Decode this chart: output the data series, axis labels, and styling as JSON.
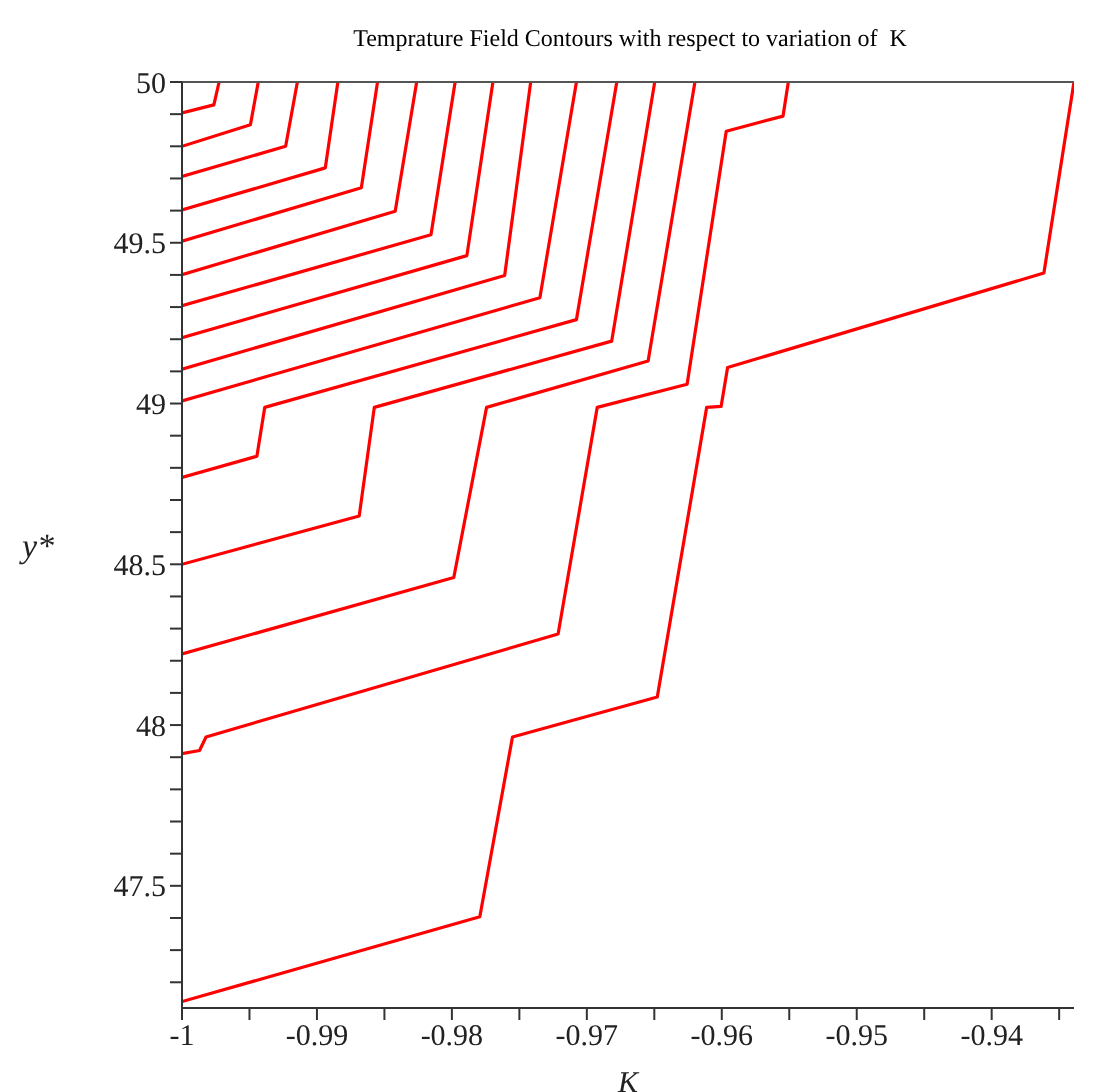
{
  "chart_data": {
    "type": "line",
    "title": "Temprature Field Contours with respect to variation of  K",
    "xlabel": "K",
    "ylabel": "y*",
    "xlim": [
      -1,
      -0.9339
    ],
    "ylim": [
      47.12,
      50
    ],
    "xticks": [
      -1,
      {
        "value": -0.995,
        "label": null
      },
      -0.99,
      {
        "value": -0.985,
        "label": null
      },
      -0.98,
      {
        "value": -0.975,
        "label": null
      },
      -0.97,
      {
        "value": -0.965,
        "label": null
      },
      -0.96,
      {
        "value": -0.955,
        "label": null
      },
      -0.95,
      {
        "value": -0.945,
        "label": null
      },
      -0.94,
      {
        "value": -0.935,
        "label": null
      }
    ],
    "yticks": [
      {
        "value": 47.2,
        "label": null
      },
      {
        "value": 47.3,
        "label": null
      },
      {
        "value": 47.4,
        "label": null
      },
      47.5,
      {
        "value": 47.6,
        "label": null
      },
      {
        "value": 47.7,
        "label": null
      },
      {
        "value": 47.8,
        "label": null
      },
      {
        "value": 47.9,
        "label": null
      },
      48,
      {
        "value": 48.1,
        "label": null
      },
      {
        "value": 48.2,
        "label": null
      },
      {
        "value": 48.3,
        "label": null
      },
      {
        "value": 48.4,
        "label": null
      },
      48.5,
      {
        "value": 48.6,
        "label": null
      },
      {
        "value": 48.7,
        "label": null
      },
      {
        "value": 48.8,
        "label": null
      },
      {
        "value": 48.9,
        "label": null
      },
      49,
      {
        "value": 49.1,
        "label": null
      },
      {
        "value": 49.2,
        "label": null
      },
      {
        "value": 49.3,
        "label": null
      },
      {
        "value": 49.4,
        "label": null
      },
      49.5,
      {
        "value": 49.6,
        "label": null
      },
      {
        "value": 49.7,
        "label": null
      },
      {
        "value": 49.8,
        "label": null
      },
      {
        "value": 49.9,
        "label": null
      },
      50
    ],
    "line_style": "solid",
    "series": [
      {
        "color": "#ff0000",
        "x": [
          -1,
          -0.99764,
          -0.99725
        ],
        "values": [
          49.904,
          49.929,
          50
        ]
      },
      {
        "color": "#ff0000",
        "x": [
          -1,
          -0.99493,
          -0.99435
        ],
        "values": [
          49.8,
          49.867,
          50
        ]
      },
      {
        "color": "#ff0000",
        "x": [
          -1,
          -0.99232,
          -0.99145
        ],
        "values": [
          49.706,
          49.8,
          50
        ]
      },
      {
        "color": "#ff0000",
        "x": [
          -1,
          -0.98938,
          -0.98845
        ],
        "values": [
          49.602,
          49.733,
          50
        ]
      },
      {
        "color": "#ff0000",
        "x": [
          -1,
          -0.98671,
          -0.98551
        ],
        "values": [
          49.505,
          49.671,
          50
        ]
      },
      {
        "color": "#ff0000",
        "x": [
          -1,
          -0.9842,
          -0.98261
        ],
        "values": [
          49.401,
          49.598,
          50
        ]
      },
      {
        "color": "#ff0000",
        "x": [
          -1,
          -0.98155,
          -0.97976
        ],
        "values": [
          49.304,
          49.525,
          50
        ]
      },
      {
        "color": "#ff0000",
        "x": [
          -1,
          -0.97889,
          -0.97696
        ],
        "values": [
          49.205,
          49.46,
          50
        ]
      },
      {
        "color": "#ff0000",
        "x": [
          -1,
          -0.97609,
          -0.97416
        ],
        "values": [
          49.107,
          49.398,
          50
        ]
      },
      {
        "color": "#ff0000",
        "x": [
          -1,
          -0.97348,
          -0.97077
        ],
        "values": [
          49.008,
          49.329,
          50
        ]
      },
      {
        "color": "#ff0000",
        "x": [
          -1,
          -0.99445,
          -0.99387,
          -0.97077,
          -0.96778
        ],
        "values": [
          48.77,
          48.836,
          48.988,
          49.261,
          50
        ]
      },
      {
        "color": "#ff0000",
        "x": [
          -1,
          -0.98687,
          -0.98575,
          -0.96816,
          -0.96497
        ],
        "values": [
          48.5,
          48.65,
          48.988,
          49.194,
          50
        ]
      },
      {
        "color": "#ff0000",
        "x": [
          -1,
          -0.97986,
          -0.97743,
          -0.96546,
          -0.96199
        ],
        "values": [
          48.221,
          48.459,
          48.988,
          49.132,
          50
        ]
      },
      {
        "color": "#ff0000",
        "x": [
          -1,
          -0.9987,
          -0.99822,
          -0.97213,
          -0.96923,
          -0.96257,
          -0.95967,
          -0.95546,
          -0.95507
        ],
        "values": [
          47.911,
          47.921,
          47.963,
          48.283,
          48.988,
          49.06,
          49.847,
          49.894,
          50
        ]
      },
      {
        "color": "#ff0000",
        "x": [
          -1,
          -0.97793,
          -0.97551,
          -0.96478,
          -0.96112,
          -0.96005,
          -0.95957,
          -0.93613,
          -0.9339
        ],
        "values": [
          47.14,
          47.404,
          47.963,
          48.087,
          48.988,
          48.991,
          49.112,
          49.406,
          50
        ]
      }
    ]
  }
}
